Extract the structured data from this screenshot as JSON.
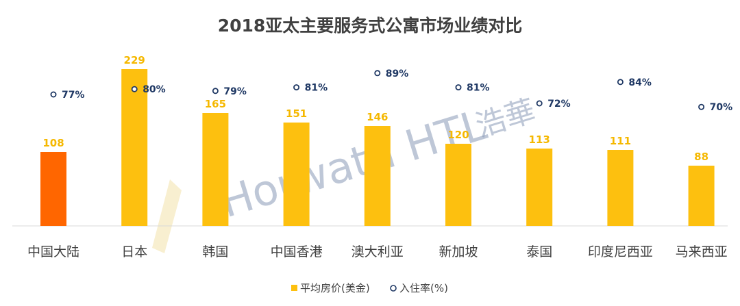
{
  "chart_data": {
    "type": "bar",
    "title": "2018亚太主要服务式公寓市场业绩对比",
    "categories": [
      "中国大陆",
      "日本",
      "韩国",
      "中国香港",
      "澳大利亚",
      "新加坡",
      "泰国",
      "印度尼西亚",
      "马来西亚"
    ],
    "series": [
      {
        "name": "平均房价(美金)",
        "kind": "bar",
        "values": [
          108,
          229,
          165,
          151,
          146,
          120,
          113,
          111,
          88
        ],
        "value_labels": [
          "108",
          "229",
          "165",
          "151",
          "146",
          "120",
          "113",
          "111",
          "88"
        ],
        "highlight_index": 0
      },
      {
        "name": "入住率(%)",
        "kind": "point",
        "values": [
          77,
          80,
          79,
          81,
          89,
          81,
          72,
          84,
          70
        ],
        "value_labels": [
          "77%",
          "80%",
          "79%",
          "81%",
          "89%",
          "81%",
          "72%",
          "84%",
          "70%"
        ]
      }
    ],
    "ylim": [
      0,
      229
    ],
    "grid": false,
    "legend_position": "bottom-center"
  },
  "colors": {
    "bar": "#fdc00f",
    "bar_highlight": "#ff6600",
    "bar_label": "#f5b800",
    "occupancy_marker": "#1f3864",
    "text": "#404040",
    "axis": "#d9d9d9"
  },
  "watermark": {
    "text": "Horwath HTL",
    "cn": "浩華"
  }
}
